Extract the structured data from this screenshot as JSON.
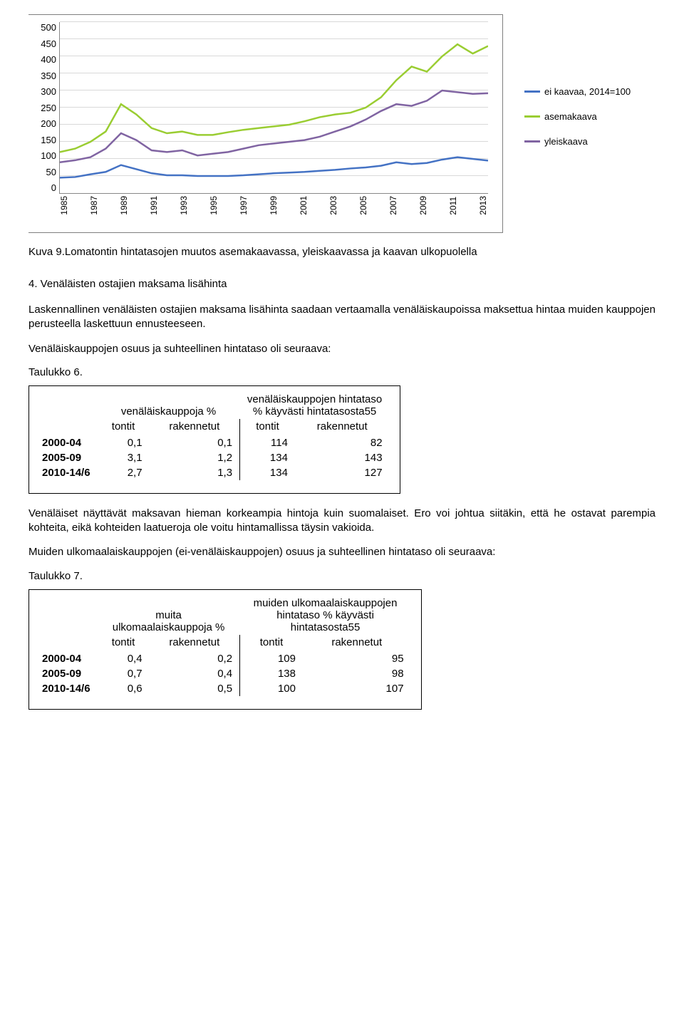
{
  "chart": {
    "type": "line",
    "ylim": [
      0,
      500
    ],
    "ytick_step": 50,
    "yticks": [
      "500",
      "450",
      "400",
      "350",
      "300",
      "250",
      "200",
      "150",
      "100",
      "50",
      "0"
    ],
    "xticks": [
      "1985",
      "1987",
      "1989",
      "1991",
      "1993",
      "1995",
      "1997",
      "1999",
      "2001",
      "2003",
      "2005",
      "2007",
      "2009",
      "2011",
      "2013"
    ],
    "grid_color": "#d9d9d9",
    "background_color": "#ffffff",
    "border_color": "#7f7f7f",
    "line_width": 2.5,
    "series": [
      {
        "name": "ei kaavaa, 2014=100",
        "color": "#4472c4",
        "points": [
          [
            0,
            45
          ],
          [
            1,
            47
          ],
          [
            2,
            55
          ],
          [
            3,
            62
          ],
          [
            4,
            82
          ],
          [
            5,
            70
          ],
          [
            6,
            58
          ],
          [
            7,
            52
          ],
          [
            8,
            52
          ],
          [
            9,
            50
          ],
          [
            10,
            50
          ],
          [
            11,
            50
          ],
          [
            12,
            52
          ],
          [
            13,
            55
          ],
          [
            14,
            58
          ],
          [
            15,
            60
          ],
          [
            16,
            62
          ],
          [
            17,
            65
          ],
          [
            18,
            68
          ],
          [
            19,
            72
          ],
          [
            20,
            75
          ],
          [
            21,
            80
          ],
          [
            22,
            90
          ],
          [
            23,
            85
          ],
          [
            24,
            88
          ],
          [
            25,
            98
          ],
          [
            26,
            105
          ],
          [
            27,
            100
          ],
          [
            28,
            95
          ]
        ]
      },
      {
        "name": "asemakaava",
        "color": "#9acd32",
        "points": [
          [
            0,
            120
          ],
          [
            1,
            130
          ],
          [
            2,
            150
          ],
          [
            3,
            180
          ],
          [
            4,
            260
          ],
          [
            5,
            230
          ],
          [
            6,
            190
          ],
          [
            7,
            175
          ],
          [
            8,
            180
          ],
          [
            9,
            170
          ],
          [
            10,
            170
          ],
          [
            11,
            178
          ],
          [
            12,
            185
          ],
          [
            13,
            190
          ],
          [
            14,
            195
          ],
          [
            15,
            200
          ],
          [
            16,
            210
          ],
          [
            17,
            222
          ],
          [
            18,
            230
          ],
          [
            19,
            235
          ],
          [
            20,
            250
          ],
          [
            21,
            280
          ],
          [
            22,
            330
          ],
          [
            23,
            370
          ],
          [
            24,
            355
          ],
          [
            25,
            400
          ],
          [
            26,
            435
          ],
          [
            27,
            408
          ],
          [
            28,
            430
          ]
        ]
      },
      {
        "name": "yleiskaava",
        "color": "#8064a2",
        "points": [
          [
            0,
            90
          ],
          [
            1,
            96
          ],
          [
            2,
            105
          ],
          [
            3,
            130
          ],
          [
            4,
            175
          ],
          [
            5,
            155
          ],
          [
            6,
            125
          ],
          [
            7,
            120
          ],
          [
            8,
            125
          ],
          [
            9,
            110
          ],
          [
            10,
            115
          ],
          [
            11,
            120
          ],
          [
            12,
            130
          ],
          [
            13,
            140
          ],
          [
            14,
            145
          ],
          [
            15,
            150
          ],
          [
            16,
            155
          ],
          [
            17,
            165
          ],
          [
            18,
            180
          ],
          [
            19,
            195
          ],
          [
            20,
            215
          ],
          [
            21,
            240
          ],
          [
            22,
            260
          ],
          [
            23,
            255
          ],
          [
            24,
            270
          ],
          [
            25,
            300
          ],
          [
            26,
            295
          ],
          [
            27,
            290
          ],
          [
            28,
            292
          ]
        ]
      }
    ],
    "legend": {
      "items": [
        "ei kaavaa, 2014=100",
        "asemakaava",
        "yleiskaava"
      ],
      "colors": [
        "#4472c4",
        "#9acd32",
        "#8064a2"
      ]
    }
  },
  "caption": "Kuva 9.Lomatontin hintatasojen muutos asemakaavassa, yleiskaavassa ja kaavan ulkopuolella",
  "section4_title": "4. Venäläisten ostajien maksama lisähinta",
  "para1": "Laskennallinen venäläisten ostajien maksama lisähinta saadaan vertaamalla venäläiskaupoissa maksettua hintaa muiden kauppojen perusteella laskettuun ennusteeseen.",
  "para2": "Venäläiskauppojen osuus ja suhteellinen hintataso oli seuraava:",
  "table6_caption": "Taulukko 6.",
  "table6": {
    "header1a": "venäläiskauppoja %",
    "header1b": "venäläiskauppojen hintataso % käyvästi hintatasosta55",
    "subheads": [
      "tontit",
      "rakennetut",
      "tontit",
      "rakennetut"
    ],
    "rows": [
      {
        "label": "2000-04",
        "c": [
          "0,1",
          "0,1",
          "114",
          "82"
        ]
      },
      {
        "label": "2005-09",
        "c": [
          "3,1",
          "1,2",
          "134",
          "143"
        ]
      },
      {
        "label": "2010-14/6",
        "c": [
          "2,7",
          "1,3",
          "134",
          "127"
        ]
      }
    ]
  },
  "para3": "Venäläiset näyttävät maksavan hieman korkeampia hintoja kuin suomalaiset. Ero voi johtua siitäkin, että he ostavat parempia kohteita, eikä kohteiden laatueroja ole voitu hintamallissa täysin vakioida.",
  "para4": "Muiden ulkomaalaiskauppojen (ei-venäläiskauppojen) osuus ja suhteellinen hintataso oli seuraava:",
  "table7_caption": "Taulukko 7.",
  "table7": {
    "header1a": "muita ulkomaalaiskauppoja %",
    "header1b": "muiden ulkomaalaiskauppojen hintataso % käyvästi hintatasosta55",
    "subheads": [
      "tontit",
      "rakennetut",
      "tontit",
      "rakennetut"
    ],
    "rows": [
      {
        "label": "2000-04",
        "c": [
          "0,4",
          "0,2",
          "109",
          "95"
        ]
      },
      {
        "label": "2005-09",
        "c": [
          "0,7",
          "0,4",
          "138",
          "98"
        ]
      },
      {
        "label": "2010-14/6",
        "c": [
          "0,6",
          "0,5",
          "100",
          "107"
        ]
      }
    ]
  }
}
